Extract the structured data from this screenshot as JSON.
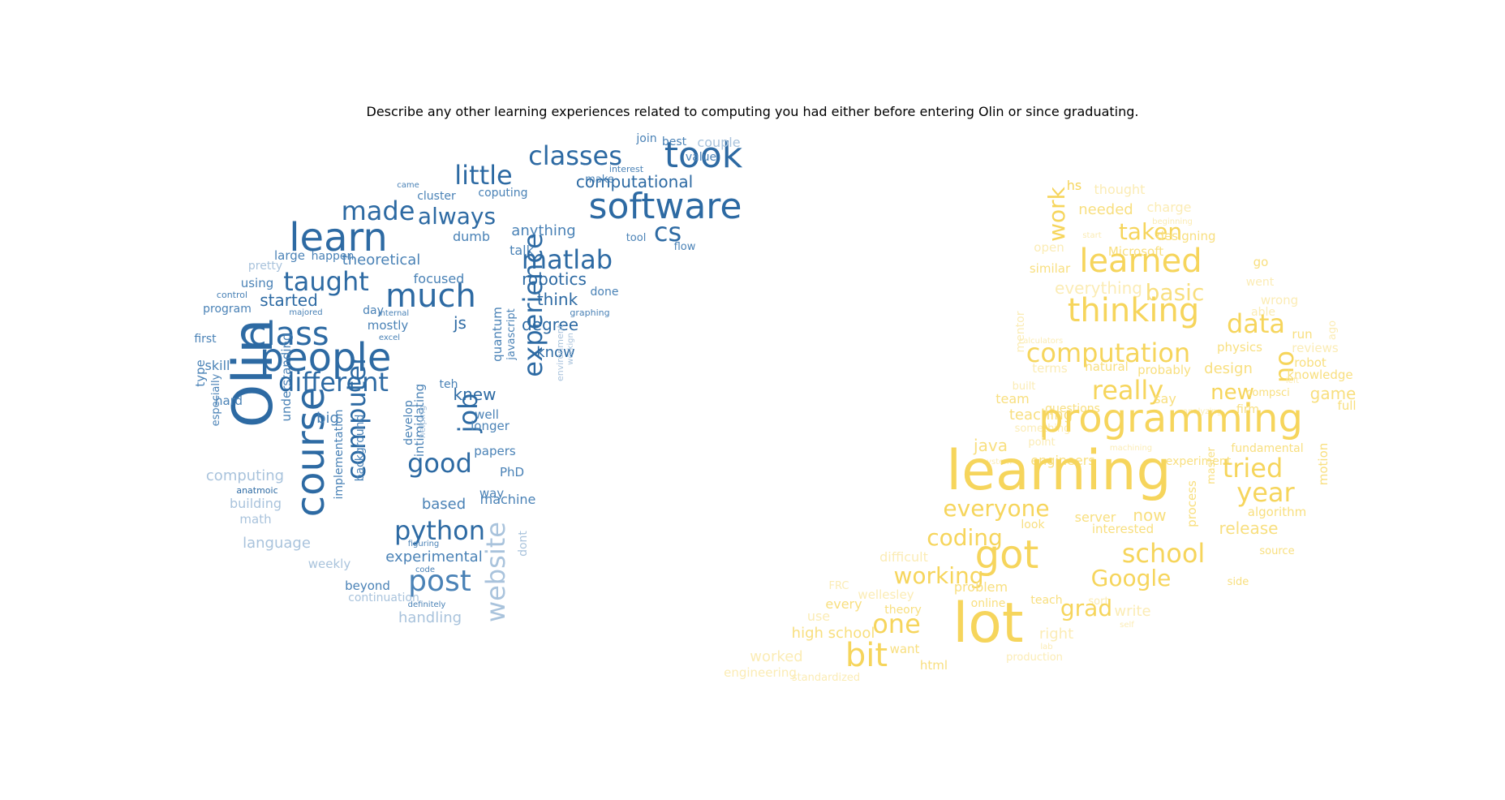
{
  "title": "Describe any other learning experiences related to computing you had either before entering Olin or since graduating.",
  "colors": {
    "blue_dark": "#2d6aa3",
    "blue_mid": "#4a82b6",
    "blue_light": "#a9c3dc",
    "yellow_dark": "#f6d55c",
    "yellow_mid": "#f8df7f",
    "yellow_light": "#fbecb5"
  },
  "left_cloud": [
    "took",
    "software",
    "classes",
    "little",
    "computational",
    "best",
    "couple",
    "value",
    "join",
    "interest",
    "made",
    "always",
    "learn",
    "cs",
    "cluster",
    "coputing",
    "make",
    "came",
    "matlab",
    "anything",
    "tool",
    "flow",
    "theoretical",
    "dumb",
    "talk",
    "large",
    "happen",
    "pretty",
    "taught",
    "much",
    "robotics",
    "focused",
    "done",
    "using",
    "program",
    "control",
    "started",
    "majored",
    "day",
    "internal",
    "think",
    "graphing",
    "class",
    "people",
    "first",
    "experience",
    "degree",
    "js",
    "know",
    "mostly",
    "excel",
    "Olin",
    "course",
    "skill",
    "type",
    "especially",
    "hard",
    "understanding",
    "different",
    "quantum",
    "javascript",
    "environment",
    "workign",
    "teh",
    "knew",
    "job",
    "big",
    "computer",
    "intimidating",
    "develop",
    "helping",
    "well",
    "longer",
    "background",
    "implementation",
    "papers",
    "computing",
    "good",
    "PhD",
    "anatmoic",
    "building",
    "based",
    "way",
    "machine",
    "math",
    "python",
    "website",
    "dont",
    "language",
    "experimental",
    "figuring",
    "weekly",
    "code",
    "post",
    "beyond",
    "continuation",
    "definitely",
    "handling"
  ],
  "right_cloud": [
    "hs",
    "thought",
    "work",
    "needed",
    "charge",
    "beginning",
    "taken",
    "start",
    "designing",
    "open",
    "Microsoft",
    "learned",
    "go",
    "similar",
    "went",
    "everything",
    "basic",
    "wrong",
    "able",
    "thinking",
    "mentor",
    "data",
    "ago",
    "run",
    "calculators",
    "no",
    "reviews",
    "computation",
    "physics",
    "robot",
    "terms",
    "natural",
    "probably",
    "design",
    "knowledge",
    "built",
    "left",
    "really",
    "new",
    "game",
    "team",
    "say",
    "compsci",
    "full",
    "teaching",
    "questions",
    "analyzing",
    "firm",
    "something",
    "programming",
    "point",
    "machining",
    "java",
    "fundamental",
    "system",
    "engineers",
    "experiment",
    "learning",
    "tried",
    "motion",
    "master",
    "everyone",
    "server",
    "now",
    "year",
    "process",
    "algorithm",
    "look",
    "interested",
    "release",
    "coding",
    "got",
    "school",
    "difficult",
    "source",
    "working",
    "Google",
    "side",
    "FRC",
    "problem",
    "wellesley",
    "sort",
    "every",
    "teach",
    "write",
    "theory",
    "online",
    "grad",
    "use",
    "self",
    "one",
    "lot",
    "right",
    "high school",
    "want",
    "lab",
    "bit",
    "worked",
    "html",
    "production",
    "engineering",
    "standardized"
  ]
}
